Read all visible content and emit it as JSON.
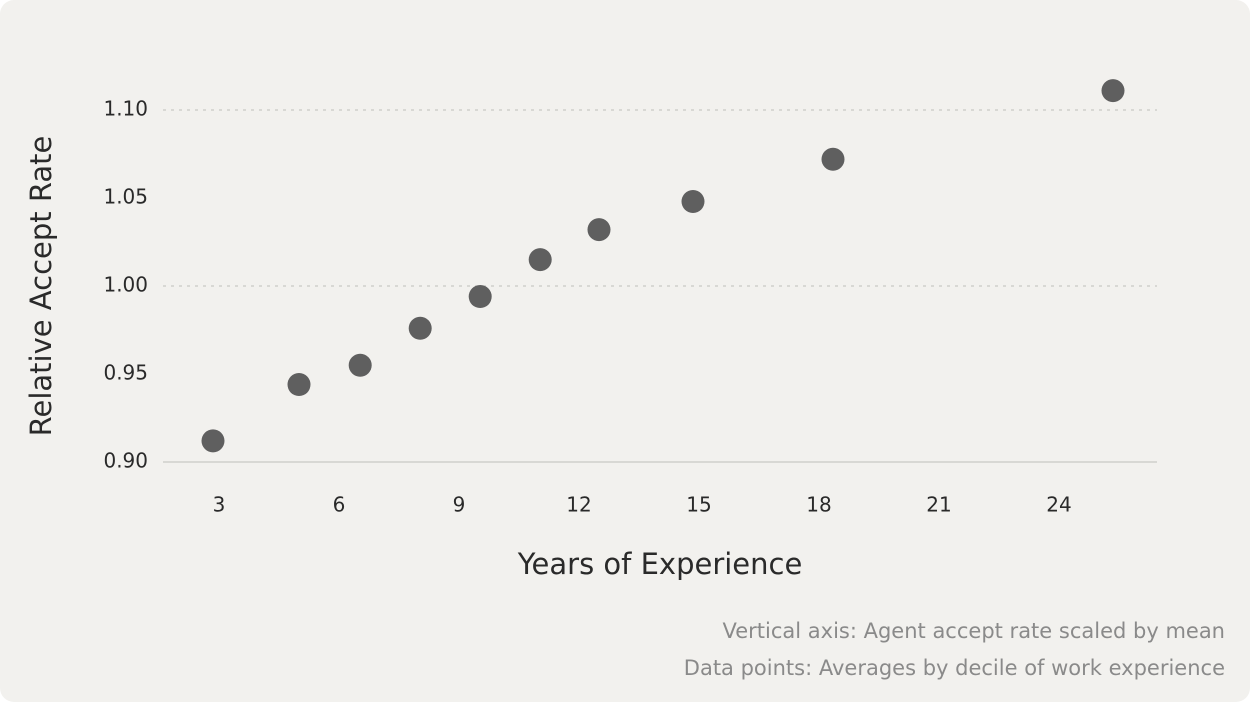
{
  "chart_data": {
    "type": "scatter",
    "x_label": "Years of Experience",
    "y_label": "Relative Accept Rate",
    "notes": [
      "Vertical axis: Agent accept rate scaled by mean",
      "Data points: Averages by decile of work experience"
    ],
    "x": [
      2.85,
      5.0,
      6.53,
      8.03,
      9.53,
      11.03,
      12.5,
      14.85,
      18.35,
      25.35
    ],
    "series": [
      {
        "color": "#5f5f5f",
        "values": [
          0.912,
          0.944,
          0.955,
          0.976,
          0.994,
          1.015,
          1.032,
          1.048,
          1.072,
          1.111
        ]
      }
    ],
    "xlim": [
      1.6,
      26.45
    ],
    "xticks": [
      3,
      6,
      9,
      12,
      15,
      18,
      21,
      24
    ],
    "ylim": [
      0.9,
      1.12
    ],
    "yticks": [
      {
        "value": 0.9,
        "label": "0.90"
      },
      0.95,
      {
        "value": 1.0,
        "label": "1.00"
      },
      1.05,
      {
        "value": 1.1,
        "label": "1.10"
      }
    ],
    "grid": true
  }
}
